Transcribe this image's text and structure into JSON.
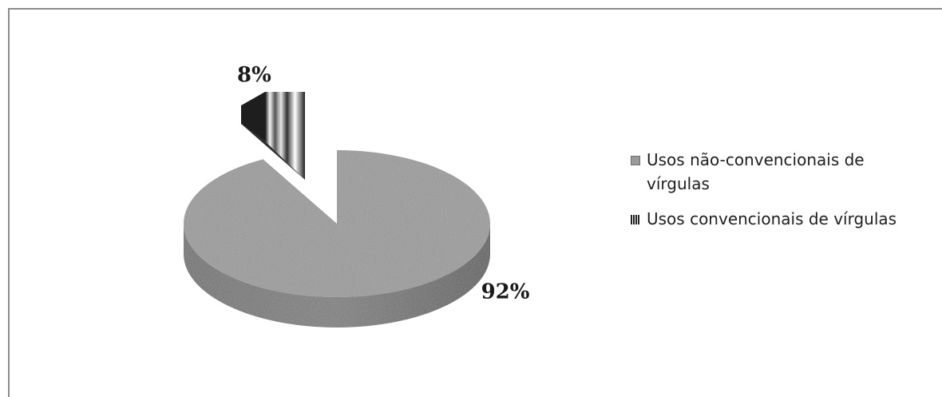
{
  "chart_data": {
    "type": "pie",
    "title": "",
    "slices": [
      {
        "label": "Usos não-convencionais de vírgulas",
        "value": 92,
        "value_label": "92%",
        "color": "#9a9a9a"
      },
      {
        "label": "Usos convencionais de vírgulas",
        "value": 8,
        "value_label": "8%",
        "color": "#2a2a2a"
      }
    ],
    "legend_position": "right",
    "style": "3d-exploded"
  },
  "legend": {
    "items": [
      {
        "label": "Usos não-convencionais de vírgulas"
      },
      {
        "label": "Usos convencionais de vírgulas"
      }
    ]
  }
}
